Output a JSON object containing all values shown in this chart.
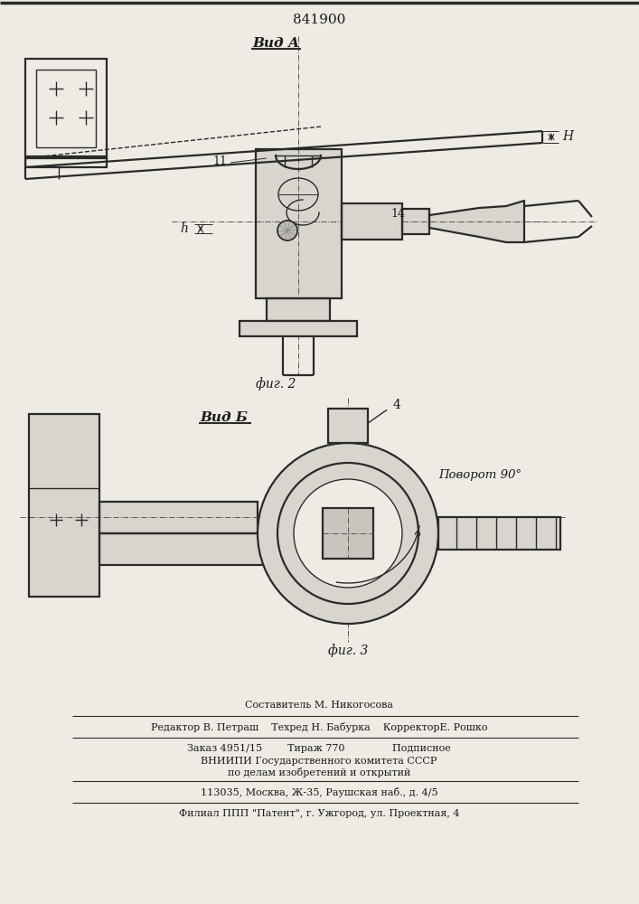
{
  "patent_number": "841900",
  "fig2_label": "фиг. 2",
  "fig3_label": "фиг. 3",
  "vid_a_label": "Вид А",
  "vid_b_label": "Вид Б",
  "rotation_label": "Поворот 90°",
  "label_11": "11",
  "label_14": "14",
  "label_H": "H",
  "label_h": "h",
  "label_4": "4",
  "footer_line1": "Составитель М. Никогосова",
  "footer_line2": "Редактор В. Петраш    Техред Н. Бабурка    КорректорЕ. Рошко",
  "footer_line3": "Заказ 4951/15        Тираж 770               Подписное",
  "footer_line4": "ВНИИПИ Государственного комитета СССР",
  "footer_line5": "по делам изобретений и открытий",
  "footer_line6": "113035, Москва, Ж-35, Раушская наб., д. 4/5",
  "footer_line7": "Филиал ППП \"Патент\", г. Ужгород, ул. Проектная, 4",
  "bg_color": "#eeebe5",
  "line_color": "#2a2a2a",
  "text_color": "#1a1a1a"
}
